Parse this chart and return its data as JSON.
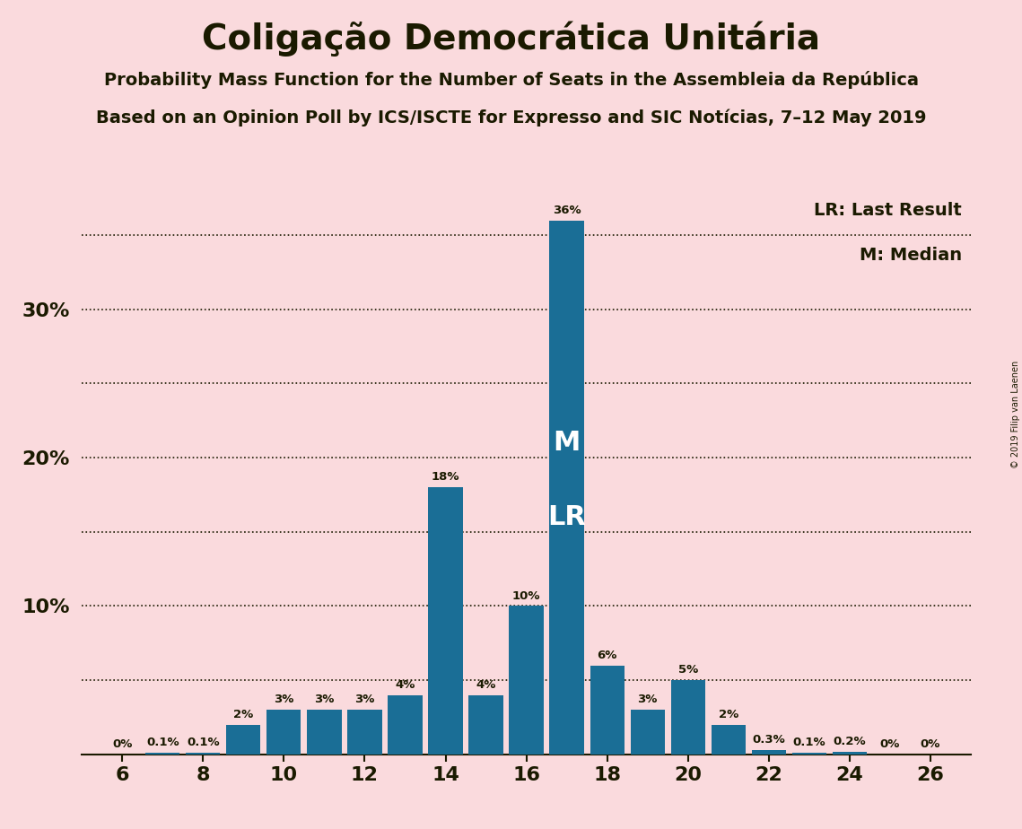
{
  "title": "Coligação Democrática Unitária",
  "subtitle1": "Probability Mass Function for the Number of Seats in the Assembleia da República",
  "subtitle2": "Based on an Opinion Poll by ICS/ISCTE for Expresso and SIC Notícias, 7–12 May 2019",
  "watermark": "© 2019 Filip van Laenen",
  "seats": [
    6,
    7,
    8,
    9,
    10,
    11,
    12,
    13,
    14,
    15,
    16,
    17,
    18,
    19,
    20,
    21,
    22,
    23,
    24,
    25,
    26
  ],
  "probabilities": [
    0.0,
    0.1,
    0.1,
    2.0,
    3.0,
    3.0,
    3.0,
    4.0,
    18.0,
    4.0,
    10.0,
    36.0,
    6.0,
    3.0,
    5.0,
    2.0,
    0.3,
    0.1,
    0.2,
    0.0,
    0.0
  ],
  "bar_color": "#1a6e96",
  "background_color": "#fadadd",
  "text_color": "#1a1a00",
  "median_seat": 17,
  "lr_seat": 17,
  "legend_lr": "LR: Last Result",
  "legend_m": "M: Median",
  "xlabel_ticks": [
    6,
    8,
    10,
    12,
    14,
    16,
    18,
    20,
    22,
    24,
    26
  ],
  "ytick_positions": [
    10,
    20,
    30
  ],
  "ytick_labels": [
    "10%",
    "20%",
    "30%"
  ],
  "dotted_lines": [
    5,
    10,
    15,
    20,
    25,
    30,
    35
  ],
  "ylim": [
    0,
    38
  ],
  "xlim": [
    5.0,
    27.0
  ]
}
